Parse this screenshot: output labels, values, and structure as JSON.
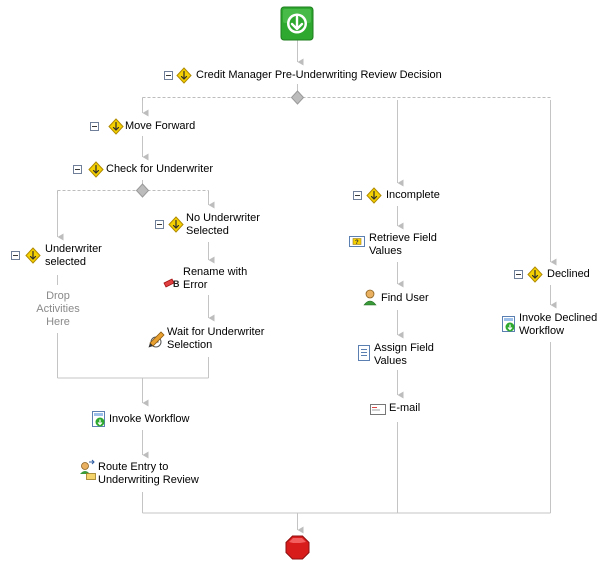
{
  "workflow": {
    "root_decision": {
      "label": "Credit Manager Pre-Underwriting Review Decision"
    },
    "branches": {
      "move_forward": {
        "label": "Move Forward",
        "check": {
          "label": "Check for Underwriter",
          "underwriter_selected": {
            "label": "Underwriter selected",
            "placeholder": "Drop Activities Here"
          },
          "no_underwriter": {
            "label": "No Underwriter Selected",
            "activities": [
              "Rename with Error",
              "Wait for Underwriter Selection"
            ]
          }
        },
        "after": [
          "Invoke Workflow",
          "Route Entry to Underwriting Review"
        ]
      },
      "incomplete": {
        "label": "Incomplete",
        "activities": [
          "Retrieve Field Values",
          "Find User",
          "Assign Field Values",
          "E-mail"
        ]
      },
      "declined": {
        "label": "Declined",
        "activities": [
          "Invoke Declined Workflow"
        ]
      }
    }
  },
  "colors": {
    "start_green": "#2ea82e",
    "stop_red": "#d81c1c",
    "decision_yellow": "#f5d000",
    "connector": "#bdbdbd",
    "drop_text": "#8a8a8a"
  },
  "icons": {
    "start": "start-arrow-icon",
    "stop": "stop-octagon-icon",
    "decision": "decision-diamond-icon",
    "collapse": "collapse-minus-icon"
  }
}
